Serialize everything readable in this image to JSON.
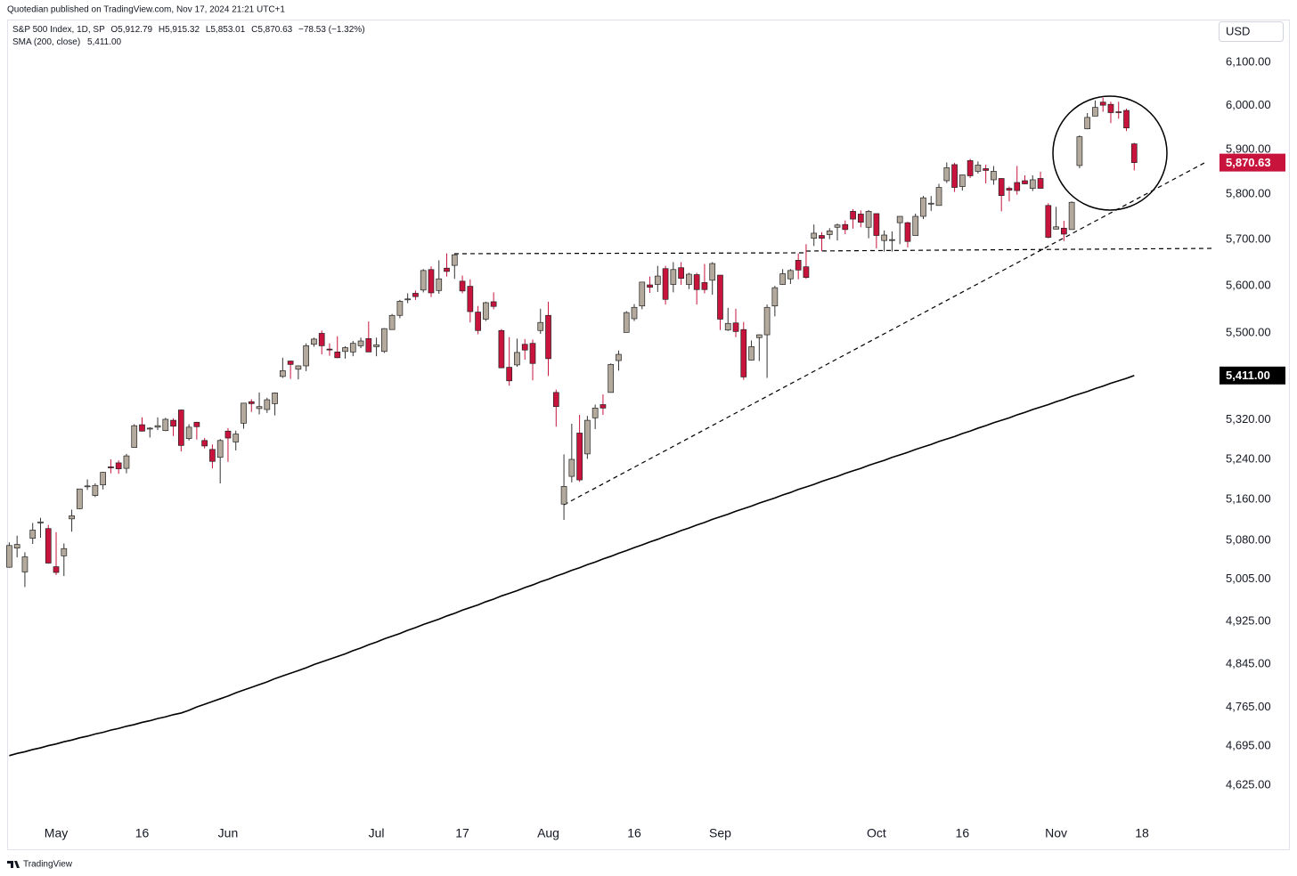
{
  "chart_data": {
    "type": "candlestick",
    "published": "Quotedian published on TradingView.com, Nov 17, 2024 21:21 UTC+1",
    "legend": {
      "symbol": "S&P 500 Index, 1D, SP",
      "ohlc": [
        "O5,912.79",
        "H5,915.32",
        "L5,853.01",
        "C5,870.63"
      ],
      "change": "−78.53 (−1.32%)"
    },
    "currency": "USD",
    "footer": "TradingView",
    "y_scale": "log",
    "grid": false,
    "up_color": "#b3aa9d",
    "down_color": "#c8143c",
    "ylim": [
      4569,
      6201
    ],
    "yticks": [
      {
        "value": 6100,
        "label": "6,100.00"
      },
      {
        "value": 6000,
        "label": "6,000.00"
      },
      {
        "value": 5900,
        "label": "5,900.00"
      },
      {
        "value": 5800,
        "label": "5,800.00"
      },
      {
        "value": 5700,
        "label": "5,700.00"
      },
      {
        "value": 5600,
        "label": "5,600.00"
      },
      {
        "value": 5500,
        "label": "5,500.00"
      },
      {
        "value": 5320,
        "label": "5,320.00"
      },
      {
        "value": 5240,
        "label": "5,240.00"
      },
      {
        "value": 5160,
        "label": "5,160.00"
      },
      {
        "value": 5080,
        "label": "5,080.00"
      },
      {
        "value": 5005,
        "label": "5,005.00"
      },
      {
        "value": 4925,
        "label": "4,925.00"
      },
      {
        "value": 4845,
        "label": "4,845.00"
      },
      {
        "value": 4765,
        "label": "4,765.00"
      },
      {
        "value": 4695,
        "label": "4,695.00"
      },
      {
        "value": 4625,
        "label": "4,625.00"
      }
    ],
    "last_price": {
      "value": 5870.63,
      "label": "5,870.63"
    },
    "categories": [
      null,
      null,
      null,
      null,
      null,
      null,
      "May",
      null,
      null,
      null,
      null,
      null,
      null,
      null,
      null,
      null,
      null,
      "16",
      null,
      null,
      null,
      null,
      null,
      null,
      null,
      null,
      null,
      null,
      "Jun",
      null,
      null,
      null,
      null,
      null,
      null,
      null,
      null,
      null,
      null,
      null,
      null,
      null,
      null,
      null,
      null,
      null,
      null,
      "Jul",
      null,
      null,
      null,
      null,
      null,
      null,
      null,
      null,
      null,
      null,
      "17",
      null,
      null,
      null,
      null,
      null,
      null,
      null,
      null,
      null,
      null,
      "Aug",
      null,
      null,
      null,
      null,
      null,
      null,
      null,
      null,
      null,
      null,
      "16",
      null,
      null,
      null,
      null,
      null,
      null,
      null,
      null,
      null,
      null,
      "Sep",
      null,
      null,
      null,
      null,
      null,
      null,
      null,
      null,
      null,
      null,
      null,
      null,
      null,
      null,
      null,
      null,
      null,
      null,
      null,
      "Oct",
      null,
      null,
      null,
      null,
      null,
      null,
      null,
      null,
      null,
      null,
      "16",
      null,
      null,
      null,
      null,
      null,
      null,
      null,
      null,
      null,
      null,
      null,
      "Nov",
      null,
      null,
      null,
      null,
      null,
      null,
      null,
      null,
      null,
      null,
      "18"
    ],
    "open": [
      5028,
      5065,
      5019,
      5084,
      5114,
      5103,
      5029,
      5050,
      5122,
      5142,
      5187,
      5168,
      5189,
      5225,
      5233,
      5222,
      5264,
      5310,
      5303,
      5305,
      5298,
      5319,
      5340,
      5282,
      5315,
      5278,
      5260,
      5244,
      5297,
      5275,
      5313,
      5357,
      5343,
      5341,
      5353,
      5409,
      5441,
      5424,
      5431,
      5476,
      5499,
      5466,
      5460,
      5461,
      5460,
      5473,
      5488,
      5471,
      5461,
      5507,
      5537,
      5572,
      5584,
      5591,
      5635,
      5590,
      5638,
      5644,
      5610,
      5599,
      5544,
      5529,
      5566,
      5505,
      5428,
      5433,
      5476,
      5478,
      5505,
      5537,
      5376,
      5151,
      5206,
      5293,
      5251,
      5324,
      5351,
      5376,
      5442,
      5501,
      5530,
      5557,
      5602,
      5603,
      5637,
      5603,
      5639,
      5603,
      5624,
      5607,
      5612,
      5623,
      5506,
      5521,
      5507,
      5443,
      5490,
      5496,
      5557,
      5603,
      5615,
      5655,
      5641,
      5703,
      5709,
      5711,
      5727,
      5733,
      5762,
      5756,
      5727,
      5757,
      5698,
      5698,
      5737,
      5737,
      5709,
      5751,
      5778,
      5775,
      5830,
      5866,
      5817,
      5875,
      5851,
      5857,
      5832,
      5835,
      5813,
      5826,
      5830,
      5813,
      5835,
      5775,
      5723,
      5725,
      5722,
      5864,
      5947,
      5976,
      6008,
      6003,
      5986,
      5989,
      5912.79,
      null
    ],
    "high": [
      5076,
      5089,
      5057,
      5114,
      5124,
      5110,
      5096,
      5074,
      5140,
      5181,
      5200,
      5192,
      5215,
      5240,
      5238,
      5251,
      5311,
      5325,
      5305,
      5325,
      5324,
      5323,
      5341,
      5311,
      5316,
      5283,
      5270,
      5281,
      5303,
      5298,
      5354,
      5362,
      5376,
      5365,
      5376,
      5448,
      5442,
      5432,
      5478,
      5490,
      5505,
      5478,
      5493,
      5472,
      5483,
      5490,
      5524,
      5490,
      5510,
      5540,
      5570,
      5584,
      5590,
      5636,
      5642,
      5655,
      5670,
      5669,
      5622,
      5614,
      5557,
      5566,
      5586,
      5508,
      5491,
      5488,
      5487,
      5486,
      5551,
      5566,
      5382,
      5250,
      5312,
      5330,
      5328,
      5351,
      5372,
      5436,
      5463,
      5546,
      5561,
      5608,
      5620,
      5643,
      5643,
      5651,
      5651,
      5628,
      5628,
      5647,
      5651,
      5623,
      5553,
      5551,
      5523,
      5484,
      5497,
      5560,
      5600,
      5636,
      5636,
      5670,
      5690,
      5733,
      5716,
      5725,
      5735,
      5742,
      5767,
      5764,
      5765,
      5757,
      5720,
      5718,
      5751,
      5739,
      5757,
      5796,
      5796,
      5823,
      5871,
      5870,
      5843,
      5879,
      5873,
      5866,
      5863,
      5835,
      5817,
      5863,
      5842,
      5842,
      5850,
      5780,
      5772,
      5741,
      5784,
      5932,
      5983,
      6012,
      6018,
      6009,
      6009,
      5993,
      5915.32,
      null
    ],
    "low": [
      5027,
      5047,
      4990,
      5073,
      5085,
      5035,
      5013,
      5011,
      5097,
      5141,
      5179,
      5165,
      5180,
      5212,
      5211,
      5212,
      5264,
      5296,
      5284,
      5299,
      5297,
      5287,
      5256,
      5278,
      5280,
      5262,
      5222,
      5192,
      5235,
      5258,
      5302,
      5336,
      5331,
      5334,
      5329,
      5406,
      5404,
      5403,
      5420,
      5471,
      5455,
      5452,
      5447,
      5446,
      5451,
      5468,
      5460,
      5451,
      5458,
      5507,
      5531,
      5563,
      5570,
      5586,
      5576,
      5583,
      5620,
      5615,
      5584,
      5522,
      5497,
      5525,
      5550,
      5426,
      5390,
      5429,
      5444,
      5401,
      5498,
      5410,
      5306,
      5120,
      5194,
      5195,
      5241,
      5301,
      5330,
      5376,
      5421,
      5501,
      5525,
      5550,
      5585,
      5587,
      5560,
      5586,
      5602,
      5593,
      5560,
      5584,
      5581,
      5506,
      5504,
      5491,
      5402,
      5442,
      5441,
      5406,
      5535,
      5602,
      5604,
      5614,
      5615,
      5686,
      5675,
      5701,
      5698,
      5712,
      5724,
      5727,
      5703,
      5681,
      5674,
      5674,
      5690,
      5683,
      5709,
      5745,
      5763,
      5775,
      5825,
      5805,
      5808,
      5836,
      5846,
      5824,
      5821,
      5762,
      5784,
      5799,
      5822,
      5807,
      5812,
      5703,
      5723,
      5697,
      5722,
      5858,
      5946,
      5976,
      5986,
      5960,
      5970,
      5942,
      5853.01,
      null
    ],
    "close": [
      5070,
      5072,
      5048,
      5100,
      5116,
      5036,
      5018,
      5064,
      5128,
      5181,
      5187,
      5188,
      5214,
      5223,
      5221,
      5247,
      5308,
      5297,
      5303,
      5308,
      5321,
      5307,
      5268,
      5305,
      5306,
      5267,
      5236,
      5278,
      5283,
      5291,
      5354,
      5353,
      5347,
      5361,
      5375,
      5421,
      5434,
      5431,
      5473,
      5487,
      5473,
      5465,
      5448,
      5469,
      5478,
      5483,
      5460,
      5475,
      5509,
      5537,
      5567,
      5572,
      5577,
      5633,
      5585,
      5615,
      5631,
      5667,
      5589,
      5545,
      5505,
      5564,
      5556,
      5427,
      5400,
      5459,
      5464,
      5436,
      5522,
      5446,
      5347,
      5186,
      5240,
      5199,
      5319,
      5344,
      5344,
      5434,
      5455,
      5543,
      5554,
      5608,
      5597,
      5621,
      5571,
      5635,
      5616,
      5625,
      5592,
      5592,
      5648,
      5529,
      5520,
      5503,
      5408,
      5471,
      5496,
      5554,
      5596,
      5626,
      5633,
      5634,
      5618,
      5714,
      5703,
      5719,
      5732,
      5722,
      5745,
      5738,
      5762,
      5709,
      5710,
      5700,
      5751,
      5696,
      5751,
      5792,
      5780,
      5815,
      5859,
      5815,
      5843,
      5841,
      5865,
      5853,
      5851,
      5797,
      5809,
      5808,
      5823,
      5832,
      5813,
      5705,
      5728,
      5712,
      5782,
      5929,
      5973,
      5996,
      6001,
      5984,
      5985,
      5949,
      5870.63,
      null
    ],
    "sma": {
      "name": "SMA (200, close)",
      "color": "#000000",
      "last": {
        "value": 5411,
        "label": "5,411.00"
      },
      "values": [
        4678,
        4682,
        4685,
        4689,
        4692,
        4696,
        4699,
        4703,
        4706,
        4710,
        4713,
        4717,
        4720,
        4724,
        4727,
        4731,
        4734,
        4738,
        4741,
        4745,
        4748,
        4752,
        4755,
        4760,
        4766,
        4771,
        4776,
        4781,
        4786,
        4792,
        4797,
        4802,
        4807,
        4812,
        4818,
        4823,
        4828,
        4833,
        4838,
        4844,
        4849,
        4854,
        4859,
        4864,
        4870,
        4875,
        4881,
        4886,
        4892,
        4897,
        4902,
        4908,
        4913,
        4919,
        4924,
        4929,
        4935,
        4940,
        4946,
        4951,
        4956,
        4962,
        4967,
        4973,
        4978,
        4983,
        4989,
        4994,
        5000,
        5005,
        5011,
        5016,
        5022,
        5027,
        5033,
        5038,
        5044,
        5049,
        5055,
        5060,
        5066,
        5071,
        5077,
        5082,
        5088,
        5093,
        5099,
        5104,
        5110,
        5115,
        5121,
        5126,
        5131,
        5137,
        5142,
        5147,
        5153,
        5158,
        5163,
        5169,
        5174,
        5180,
        5185,
        5190,
        5196,
        5201,
        5206,
        5212,
        5217,
        5222,
        5228,
        5233,
        5238,
        5244,
        5249,
        5254,
        5260,
        5265,
        5270,
        5276,
        5281,
        5286,
        5292,
        5297,
        5303,
        5308,
        5314,
        5319,
        5324,
        5330,
        5335,
        5341,
        5346,
        5351,
        5357,
        5362,
        5368,
        5373,
        5378,
        5384,
        5389,
        5395,
        5400,
        5405,
        5411,
        null
      ]
    }
  }
}
